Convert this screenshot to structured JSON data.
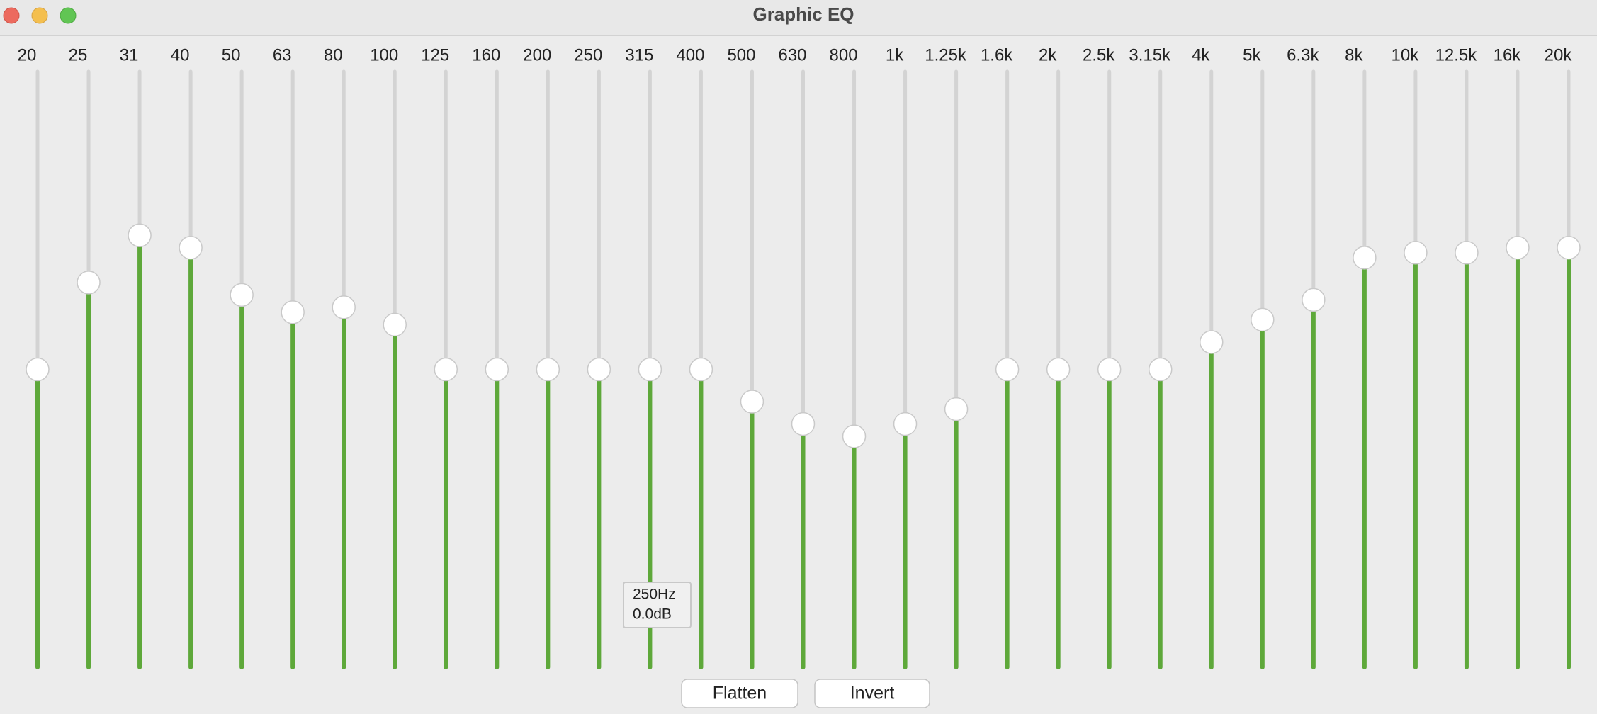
{
  "window": {
    "title": "Graphic EQ"
  },
  "bands": {
    "labels": [
      "20",
      "25",
      "31",
      "40",
      "50",
      "63",
      "80",
      "100",
      "125",
      "160",
      "200",
      "250",
      "315",
      "400",
      "500",
      "630",
      "800",
      "1k",
      "1.25k",
      "1.6k",
      "2k",
      "2.5k",
      "3.15k",
      "4k",
      "5k",
      "6.3k",
      "8k",
      "10k",
      "12.5k",
      "16k",
      "20k"
    ],
    "gains_db": [
      0,
      3.5,
      5.4,
      4.9,
      3.0,
      2.3,
      2.5,
      1.8,
      0,
      0,
      0,
      0,
      0,
      0,
      -1.3,
      -2.2,
      -2.7,
      -2.2,
      -1.6,
      0,
      0,
      0,
      0,
      1.1,
      2.0,
      2.8,
      4.5,
      4.7,
      4.7,
      4.9,
      4.9
    ],
    "range_db": [
      -12,
      12
    ]
  },
  "tooltip": {
    "lines": [
      "250Hz",
      "0.0dB"
    ]
  },
  "buttons": [
    "Flatten",
    "Invert"
  ]
}
